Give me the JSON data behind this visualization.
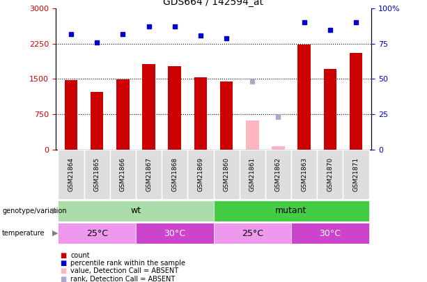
{
  "title": "GDS664 / 142594_at",
  "samples": [
    "GSM21864",
    "GSM21865",
    "GSM21866",
    "GSM21867",
    "GSM21868",
    "GSM21869",
    "GSM21860",
    "GSM21861",
    "GSM21862",
    "GSM21863",
    "GSM21870",
    "GSM21871"
  ],
  "counts": [
    1480,
    1230,
    1490,
    1820,
    1780,
    1530,
    1440,
    null,
    null,
    2230,
    1710,
    2050
  ],
  "counts_absent": [
    null,
    null,
    null,
    null,
    null,
    null,
    null,
    620,
    75,
    null,
    null,
    null
  ],
  "percentile_ranks": [
    82,
    76,
    82,
    87,
    87,
    81,
    79,
    null,
    null,
    90,
    85,
    90
  ],
  "percentile_ranks_absent": [
    null,
    null,
    null,
    null,
    null,
    null,
    null,
    48,
    23,
    null,
    null,
    null
  ],
  "absent_flags": [
    false,
    false,
    false,
    false,
    false,
    false,
    false,
    true,
    true,
    false,
    false,
    false
  ],
  "ylim_left": [
    0,
    3000
  ],
  "ylim_right": [
    0,
    100
  ],
  "yticks_left": [
    0,
    750,
    1500,
    2250,
    3000
  ],
  "yticks_right": [
    0,
    25,
    50,
    75,
    100
  ],
  "ytick_labels_right": [
    "0",
    "25",
    "50",
    "75",
    "100%"
  ],
  "hlines": [
    750,
    1500,
    2250
  ],
  "bar_color": "#CC0000",
  "bar_color_absent": "#FFB6C1",
  "dot_color": "#0000CC",
  "dot_color_absent": "#AAAACC",
  "genotype_wt_color": "#AADDAA",
  "genotype_mutant_color": "#44CC44",
  "temp_25_color": "#EE99EE",
  "temp_30_color": "#CC44CC",
  "genotype_wt_range": [
    0,
    5
  ],
  "genotype_mutant_range": [
    6,
    11
  ],
  "temp_25_wt_range": [
    0,
    2
  ],
  "temp_30_wt_range": [
    3,
    5
  ],
  "temp_25_mut_range": [
    6,
    8
  ],
  "temp_30_mut_range": [
    9,
    11
  ],
  "legend_items": [
    {
      "label": "count",
      "color": "#CC0000"
    },
    {
      "label": "percentile rank within the sample",
      "color": "#0000CC"
    },
    {
      "label": "value, Detection Call = ABSENT",
      "color": "#FFB6C1"
    },
    {
      "label": "rank, Detection Call = ABSENT",
      "color": "#AAAACC"
    }
  ]
}
